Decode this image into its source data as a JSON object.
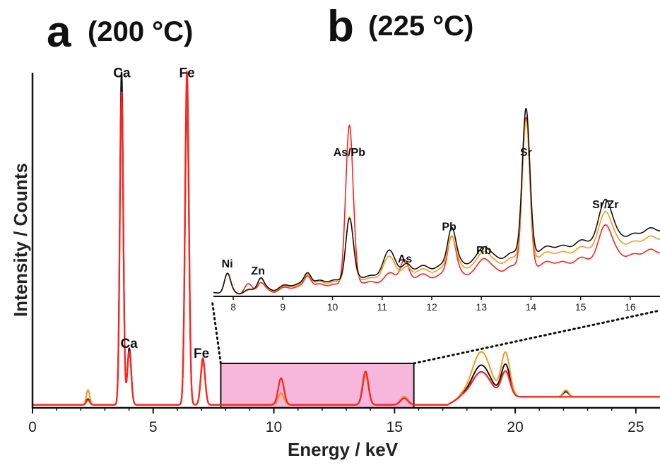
{
  "panel_a": {
    "letter": "a",
    "temp": "(200 °C)"
  },
  "panel_b": {
    "letter": "b",
    "temp": "(225 °C)"
  },
  "chart_data": [
    {
      "id": "main",
      "type": "line",
      "title": "(200 °C)",
      "xlabel": "Energy / keV",
      "ylabel": "Intensity / Counts",
      "xlim": [
        0,
        26
      ],
      "ylim": [
        0,
        100
      ],
      "xticks": [
        0,
        5,
        10,
        15,
        20,
        25
      ],
      "colors": {
        "red": "#ff2020",
        "orange": "#f39a1a",
        "black": "#111111",
        "box_fill": "#f7b7dd"
      },
      "zoom_box": {
        "x_range": [
          7.8,
          15.8
        ],
        "label": "magnified region"
      },
      "peak_labels": [
        {
          "text": "Ca",
          "x": 3.7,
          "y": 99
        },
        {
          "text": "Fe",
          "x": 6.4,
          "y": 99
        },
        {
          "text": "Ca",
          "x": 4.0,
          "y": 18
        },
        {
          "text": "Fe",
          "x": 7.0,
          "y": 15
        }
      ],
      "series": [
        {
          "name": "red",
          "color": "#ff2020",
          "peaks": [
            [
              3.69,
              94,
              0.07
            ],
            [
              4.01,
              16,
              0.08
            ],
            [
              6.4,
              100,
              0.08
            ],
            [
              7.06,
              14,
              0.09
            ],
            [
              2.3,
              1.5,
              0.07
            ],
            [
              10.3,
              8,
              0.12
            ],
            [
              13.8,
              10,
              0.12
            ],
            [
              15.4,
              2,
              0.15
            ],
            [
              18.6,
              7.5,
              0.38
            ],
            [
              19.6,
              7.5,
              0.18
            ]
          ]
        },
        {
          "name": "orange",
          "color": "#f39a1a",
          "peaks": [
            [
              3.69,
              91,
              0.07
            ],
            [
              4.01,
              16,
              0.08
            ],
            [
              6.4,
              93,
              0.08
            ],
            [
              7.06,
              13,
              0.09
            ],
            [
              2.3,
              4.5,
              0.07
            ],
            [
              10.3,
              3.5,
              0.12
            ],
            [
              13.8,
              9,
              0.12
            ],
            [
              15.4,
              2.5,
              0.15
            ],
            [
              18.6,
              13.5,
              0.38
            ],
            [
              19.6,
              13,
              0.18
            ],
            [
              22.1,
              2,
              0.12
            ]
          ]
        },
        {
          "name": "black",
          "color": "#111111",
          "peaks": [
            [
              3.69,
              100,
              0.07
            ],
            [
              4.01,
              17,
              0.08
            ],
            [
              6.4,
              90,
              0.08
            ],
            [
              7.06,
              13,
              0.09
            ],
            [
              2.3,
              1.8,
              0.07
            ],
            [
              10.3,
              3.5,
              0.12
            ],
            [
              13.8,
              9,
              0.12
            ],
            [
              15.4,
              2.5,
              0.15
            ],
            [
              18.6,
              9.5,
              0.38
            ],
            [
              19.6,
              9.5,
              0.18
            ],
            [
              22.1,
              1.5,
              0.12
            ]
          ]
        }
      ]
    },
    {
      "id": "inset",
      "type": "line",
      "title": "(225 °C)",
      "xlim": [
        7.6,
        16.6
      ],
      "ylim": [
        0,
        100
      ],
      "xticks": [
        8,
        9,
        10,
        11,
        12,
        13,
        14,
        15,
        16
      ],
      "peak_labels": [
        {
          "text": "Ni",
          "x": 7.88,
          "y": 17
        },
        {
          "text": "Zn",
          "x": 8.5,
          "y": 13
        },
        {
          "text": "As/Pb",
          "x": 10.34,
          "y": 83
        },
        {
          "text": "As",
          "x": 11.46,
          "y": 20
        },
        {
          "text": "Pb",
          "x": 12.35,
          "y": 39
        },
        {
          "text": "Rb",
          "x": 13.05,
          "y": 25
        },
        {
          "text": "Sr",
          "x": 13.9,
          "y": 83
        },
        {
          "text": "Sr/Zr",
          "x": 15.5,
          "y": 52
        }
      ],
      "series": [
        {
          "name": "red",
          "color": "#ff2020",
          "base_start": 2,
          "base_end": 27,
          "peaks": [
            [
              7.88,
              10,
              0.06
            ],
            [
              8.3,
              4,
              0.07
            ],
            [
              8.55,
              4,
              0.06
            ],
            [
              9.5,
              8,
              0.07
            ],
            [
              10.34,
              93,
              0.075
            ],
            [
              11.2,
              3,
              0.1
            ],
            [
              11.45,
              11,
              0.08
            ],
            [
              12.4,
              22,
              0.08
            ],
            [
              13.05,
              7,
              0.1
            ],
            [
              13.9,
              87,
              0.075
            ],
            [
              15.5,
              20,
              0.12
            ]
          ]
        },
        {
          "name": "orange",
          "color": "#f39a1a",
          "base_start": 2,
          "base_end": 35,
          "peaks": [
            [
              7.88,
              10,
              0.06
            ],
            [
              8.55,
              6,
              0.06
            ],
            [
              9.5,
              8,
              0.07
            ],
            [
              10.34,
              37,
              0.075
            ],
            [
              11.15,
              10,
              0.12
            ],
            [
              11.5,
              4,
              0.08
            ],
            [
              12.4,
              18,
              0.08
            ],
            [
              13.05,
              7,
              0.1
            ],
            [
              13.9,
              80,
              0.075
            ],
            [
              15.5,
              21,
              0.12
            ]
          ]
        },
        {
          "name": "black",
          "color": "#111111",
          "base_start": 2,
          "base_end": 40,
          "peaks": [
            [
              7.88,
              10,
              0.06
            ],
            [
              8.55,
              6,
              0.06
            ],
            [
              9.5,
              8,
              0.07
            ],
            [
              10.34,
              35,
              0.075
            ],
            [
              11.15,
              12,
              0.12
            ],
            [
              11.5,
              4,
              0.08
            ],
            [
              12.4,
              21,
              0.08
            ],
            [
              13.05,
              7,
              0.1
            ],
            [
              13.9,
              84,
              0.075
            ],
            [
              15.5,
              24,
              0.12
            ]
          ]
        }
      ]
    }
  ]
}
